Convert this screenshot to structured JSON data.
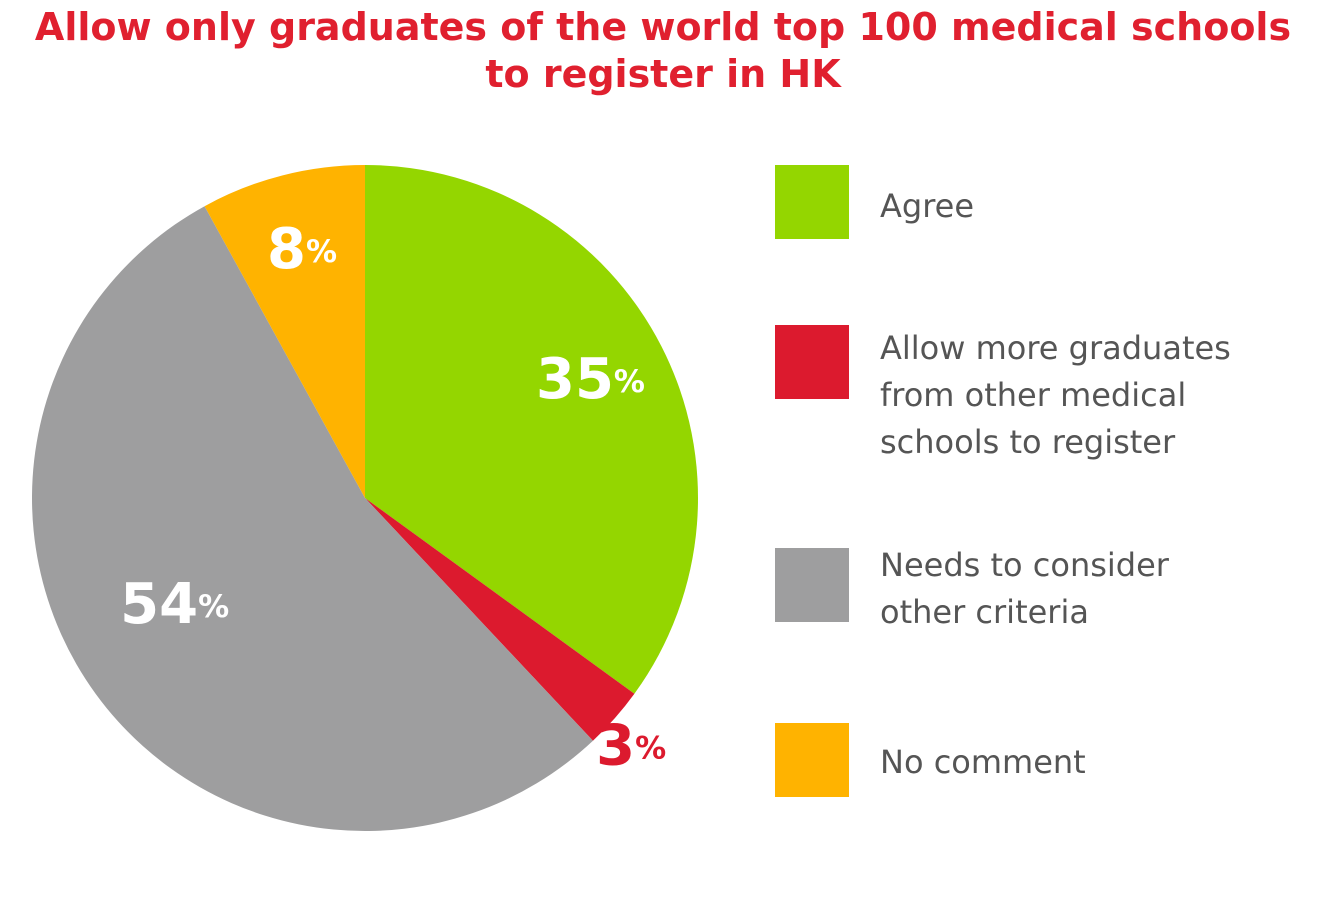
{
  "chart_data": {
    "type": "pie",
    "title": [
      "Allow only graduates of the world top 100 medical schools",
      "to register in HK"
    ],
    "slices": [
      {
        "label": [
          "Agree"
        ],
        "value": 35,
        "color": "#94d600",
        "pct_text": "35",
        "pct_sign": "%"
      },
      {
        "label": [
          "Allow more graduates",
          "from other medical",
          "schools to register"
        ],
        "value": 3,
        "color": "#dc1a2e",
        "pct_text": "3",
        "pct_sign": "%"
      },
      {
        "label": [
          "Needs to consider",
          "other criteria"
        ],
        "value": 54,
        "color": "#9e9e9f",
        "pct_text": "54",
        "pct_sign": "%"
      },
      {
        "label": [
          "No comment"
        ],
        "value": 8,
        "color": "#ffb300",
        "pct_text": "8",
        "pct_sign": "%"
      }
    ],
    "legend": "right",
    "start_angle": "12 o'clock",
    "direction": "clockwise"
  }
}
